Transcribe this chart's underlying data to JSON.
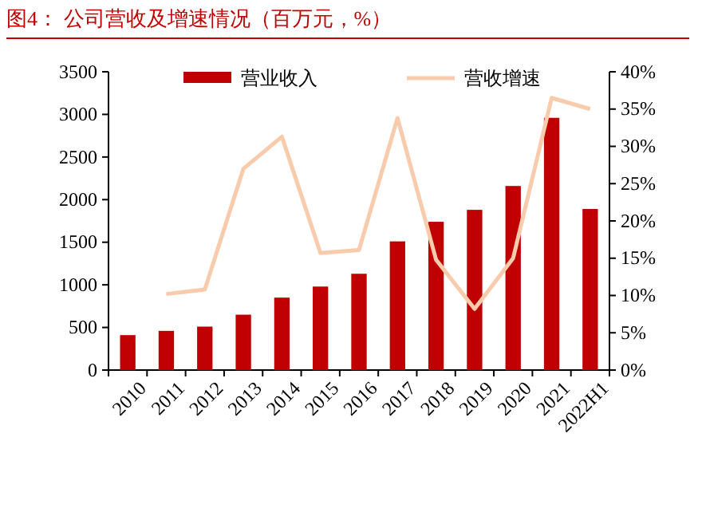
{
  "chart_data": {
    "type": "bar",
    "title": "图4：   公司营收及增速情况（百万元，%）",
    "categories": [
      "2010",
      "2011",
      "2012",
      "2013",
      "2014",
      "2015",
      "2016",
      "2017",
      "2018",
      "2019",
      "2020",
      "2021",
      "2022H1"
    ],
    "series": [
      {
        "name": "营业收入",
        "color": "#c00000",
        "values": [
          410,
          460,
          510,
          650,
          850,
          980,
          1130,
          1510,
          1740,
          1880,
          2160,
          2960,
          1890
        ]
      },
      {
        "name": "营收增速",
        "type": "line",
        "axis": "y2",
        "color": "#f8cbad",
        "values": [
          null,
          10.2,
          10.8,
          27,
          31.3,
          15.7,
          16.1,
          33.8,
          14.8,
          8.2,
          15,
          36.5,
          35
        ]
      }
    ],
    "ylim": [
      0,
      3500
    ],
    "yticks": [
      0,
      500,
      1000,
      1500,
      2000,
      2500,
      3000,
      3500
    ],
    "y2lim": [
      0,
      40
    ],
    "y2ticks": [
      {
        "value": 0,
        "label": "0%"
      },
      {
        "value": 5,
        "label": "5%"
      },
      {
        "value": 10,
        "label": "10%"
      },
      {
        "value": 15,
        "label": "15%"
      },
      {
        "value": 20,
        "label": "20%"
      },
      {
        "value": 25,
        "label": "25%"
      },
      {
        "value": 30,
        "label": "30%"
      },
      {
        "value": 35,
        "label": "35%"
      },
      {
        "value": 40,
        "label": "40%"
      }
    ],
    "legend": "top",
    "grid": false
  }
}
